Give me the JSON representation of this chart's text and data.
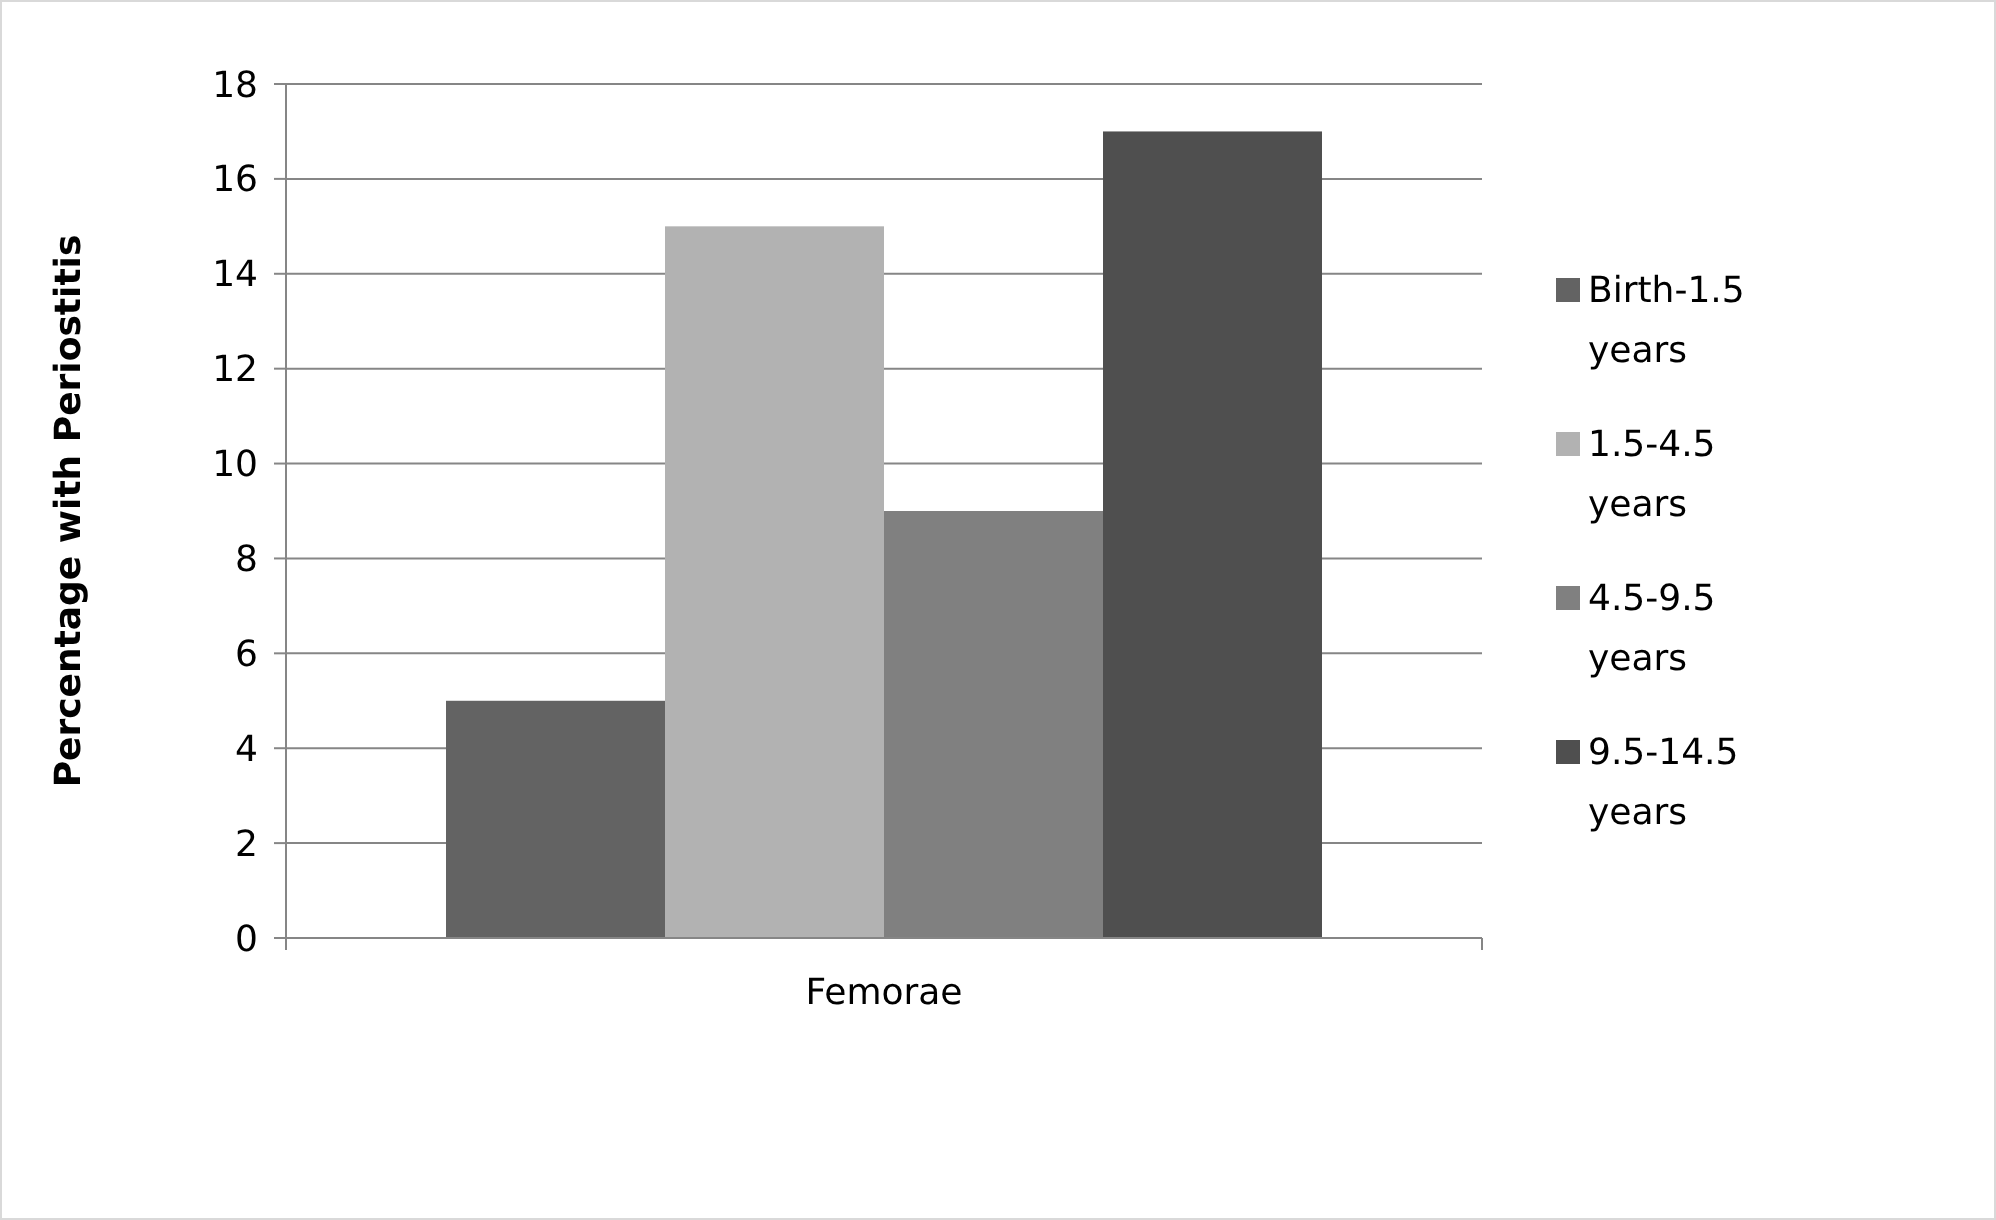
{
  "chart_data": {
    "type": "bar",
    "categories": [
      "Femorae"
    ],
    "ylabel": "Percentage with Periostitis",
    "series": [
      {
        "name": "Birth-1.5 years",
        "color": "#636363",
        "values": [
          5
        ]
      },
      {
        "name": "1.5-4.5 years",
        "color": "#b2b2b2",
        "values": [
          15
        ]
      },
      {
        "name": "4.5-9.5 years",
        "color": "#808080",
        "values": [
          9
        ]
      },
      {
        "name": "9.5-14.5 years",
        "color": "#4f4f4f",
        "values": [
          17
        ]
      }
    ],
    "ylim": [
      0,
      18
    ],
    "yticks": [
      0,
      2,
      4,
      6,
      8,
      10,
      12,
      14,
      16,
      18
    ],
    "grid": "y",
    "legend": "right"
  }
}
